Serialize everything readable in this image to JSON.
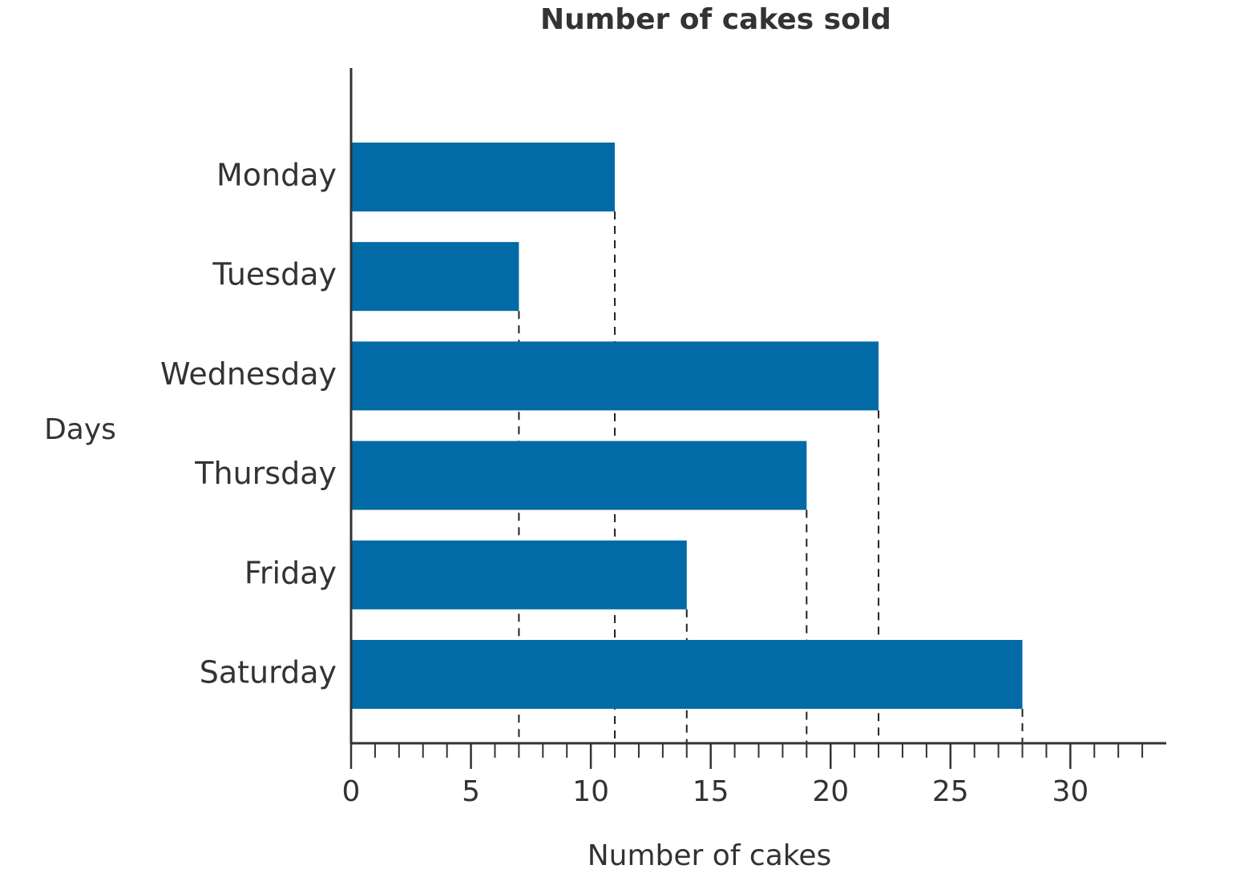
{
  "chart_data": {
    "type": "hbar",
    "title": "Number of cakes sold",
    "categories": [
      "Monday",
      "Tuesday",
      "Wednesday",
      "Thursday",
      "Friday",
      "Saturday"
    ],
    "values": [
      11,
      7,
      22,
      19,
      14,
      28
    ],
    "color": "#026aa7",
    "xlabel": "Number of cakes",
    "ylabel": "Days",
    "xlim": [
      0,
      34
    ],
    "xticks": [
      0,
      5,
      10,
      15,
      20,
      25,
      30
    ],
    "xminorticks": [
      1,
      2,
      3,
      4,
      6,
      7,
      8,
      9,
      11,
      12,
      13,
      14,
      16,
      17,
      18,
      19,
      21,
      22,
      23,
      24,
      26,
      27,
      28,
      29,
      31,
      32,
      33
    ],
    "drop_lines": true
  }
}
